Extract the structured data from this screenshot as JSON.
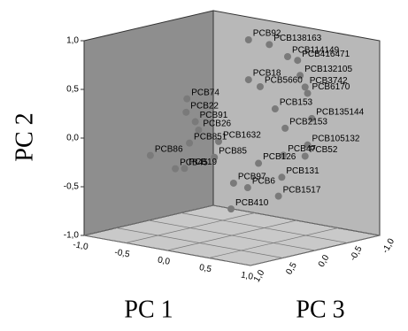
{
  "chart_data": {
    "type": "scatter3d",
    "x_label": "PC 1",
    "y_label": "PC 2",
    "z_label": "PC 3",
    "xlim": [
      -1,
      1
    ],
    "ylim": [
      -1,
      1
    ],
    "zlim": [
      -1,
      1
    ],
    "xticks": [
      {
        "value": -1,
        "label": "-1,0"
      },
      {
        "value": -0.5,
        "label": "-0,5"
      },
      {
        "value": 0,
        "label": "0,0"
      },
      {
        "value": 0.5,
        "label": "0,5"
      },
      {
        "value": 1,
        "label": "1,0"
      }
    ],
    "yticks": [
      {
        "value": -1,
        "label": "-1,0"
      },
      {
        "value": -0.5,
        "label": "-0,5"
      },
      {
        "value": 0,
        "label": "0,0"
      },
      {
        "value": 0.5,
        "label": "0,5"
      },
      {
        "value": 1,
        "label": "1,0"
      }
    ],
    "zticks": [
      {
        "value": -1,
        "label": "-1,0"
      },
      {
        "value": -0.5,
        "label": "-0,5"
      },
      {
        "value": 0,
        "label": "0,0"
      },
      {
        "value": 0.5,
        "label": "0,5"
      },
      {
        "value": 1,
        "label": "1,0"
      }
    ],
    "color": "#7a7a7a",
    "points": [
      {
        "label": "PCB92",
        "x": 0.2,
        "y": 1.04,
        "z": 0
      },
      {
        "label": "PCB138163",
        "x": 0.45,
        "y": 1.03,
        "z": 0
      },
      {
        "label": "PCB114149",
        "x": 0.67,
        "y": 0.94,
        "z": 0
      },
      {
        "label": "PCB416471",
        "x": 0.79,
        "y": 0.92,
        "z": 0
      },
      {
        "label": "PCB18",
        "x": 0.2,
        "y": 0.63,
        "z": 0
      },
      {
        "label": "PCB132105",
        "x": 0.82,
        "y": 0.77,
        "z": 0
      },
      {
        "label": "PCB5660",
        "x": 0.34,
        "y": 0.58,
        "z": 0
      },
      {
        "label": "PCB3742",
        "x": 0.88,
        "y": 0.66,
        "z": 0
      },
      {
        "label": "PCB6170",
        "x": 0.91,
        "y": 0.6,
        "z": 0
      },
      {
        "label": "PCB74",
        "x": -0.54,
        "y": 0.32,
        "z": 0
      },
      {
        "label": "PCB153",
        "x": 0.52,
        "y": 0.38,
        "z": 0
      },
      {
        "label": "PCB22",
        "x": -0.55,
        "y": 0.18,
        "z": 0
      },
      {
        "label": "PCB91",
        "x": -0.44,
        "y": 0.1,
        "z": 0
      },
      {
        "label": "PCB26",
        "x": -0.4,
        "y": 0.02,
        "z": 0
      },
      {
        "label": "PCB135144",
        "x": 0.96,
        "y": 0.35,
        "z": 0
      },
      {
        "label": "PCB2153",
        "x": 0.64,
        "y": 0.2,
        "z": 0
      },
      {
        "label": "PCB1632",
        "x": -0.16,
        "y": -0.06,
        "z": 0
      },
      {
        "label": "PCB86",
        "x": -0.98,
        "y": -0.33,
        "z": 0
      },
      {
        "label": "PCB851",
        "x": -0.51,
        "y": -0.13,
        "z": 0
      },
      {
        "label": "PCB105132",
        "x": 0.91,
        "y": 0.07,
        "z": 0
      },
      {
        "label": "PCB47",
        "x": 0.62,
        "y": -0.08,
        "z": 0
      },
      {
        "label": "PCB52",
        "x": 0.88,
        "y": -0.05,
        "z": 0
      },
      {
        "label": "PCB85",
        "x": -0.21,
        "y": -0.23,
        "z": 0
      },
      {
        "label": "PCB126",
        "x": 0.32,
        "y": -0.21,
        "z": 0
      },
      {
        "label": "PCB45",
        "x": -0.68,
        "y": -0.42,
        "z": 0
      },
      {
        "label": "PCB19",
        "x": -0.57,
        "y": -0.4,
        "z": 0
      },
      {
        "label": "PCB131",
        "x": 0.6,
        "y": -0.31,
        "z": 0
      },
      {
        "label": "PCB97",
        "x": 0.02,
        "y": -0.46,
        "z": 0
      },
      {
        "label": "PCB6",
        "x": 0.19,
        "y": -0.48,
        "z": 0
      },
      {
        "label": "PCB1517",
        "x": 0.56,
        "y": -0.51,
        "z": 0
      },
      {
        "label": "PCB410",
        "x": -0.01,
        "y": -0.73,
        "z": 0
      }
    ]
  }
}
